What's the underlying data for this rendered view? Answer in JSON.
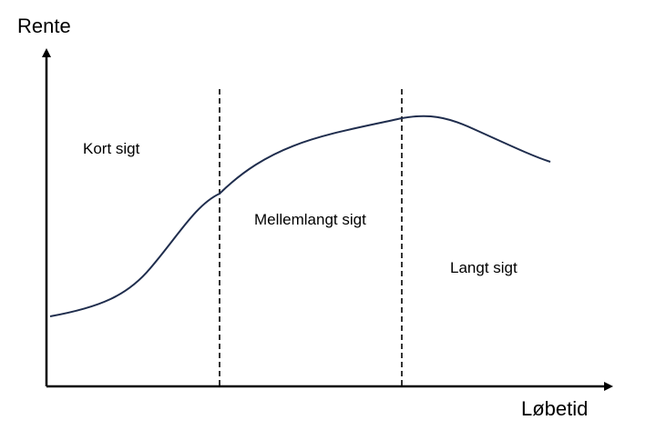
{
  "diagram": {
    "y_axis_label": "Rente",
    "x_axis_label": "Løbetid",
    "regions": [
      "Kort sigt",
      "Mellemlangt sigt",
      "Langt sigt"
    ],
    "colors": {
      "curve": "#1f2d4d",
      "axis": "#000000",
      "divider": "#000000"
    }
  }
}
